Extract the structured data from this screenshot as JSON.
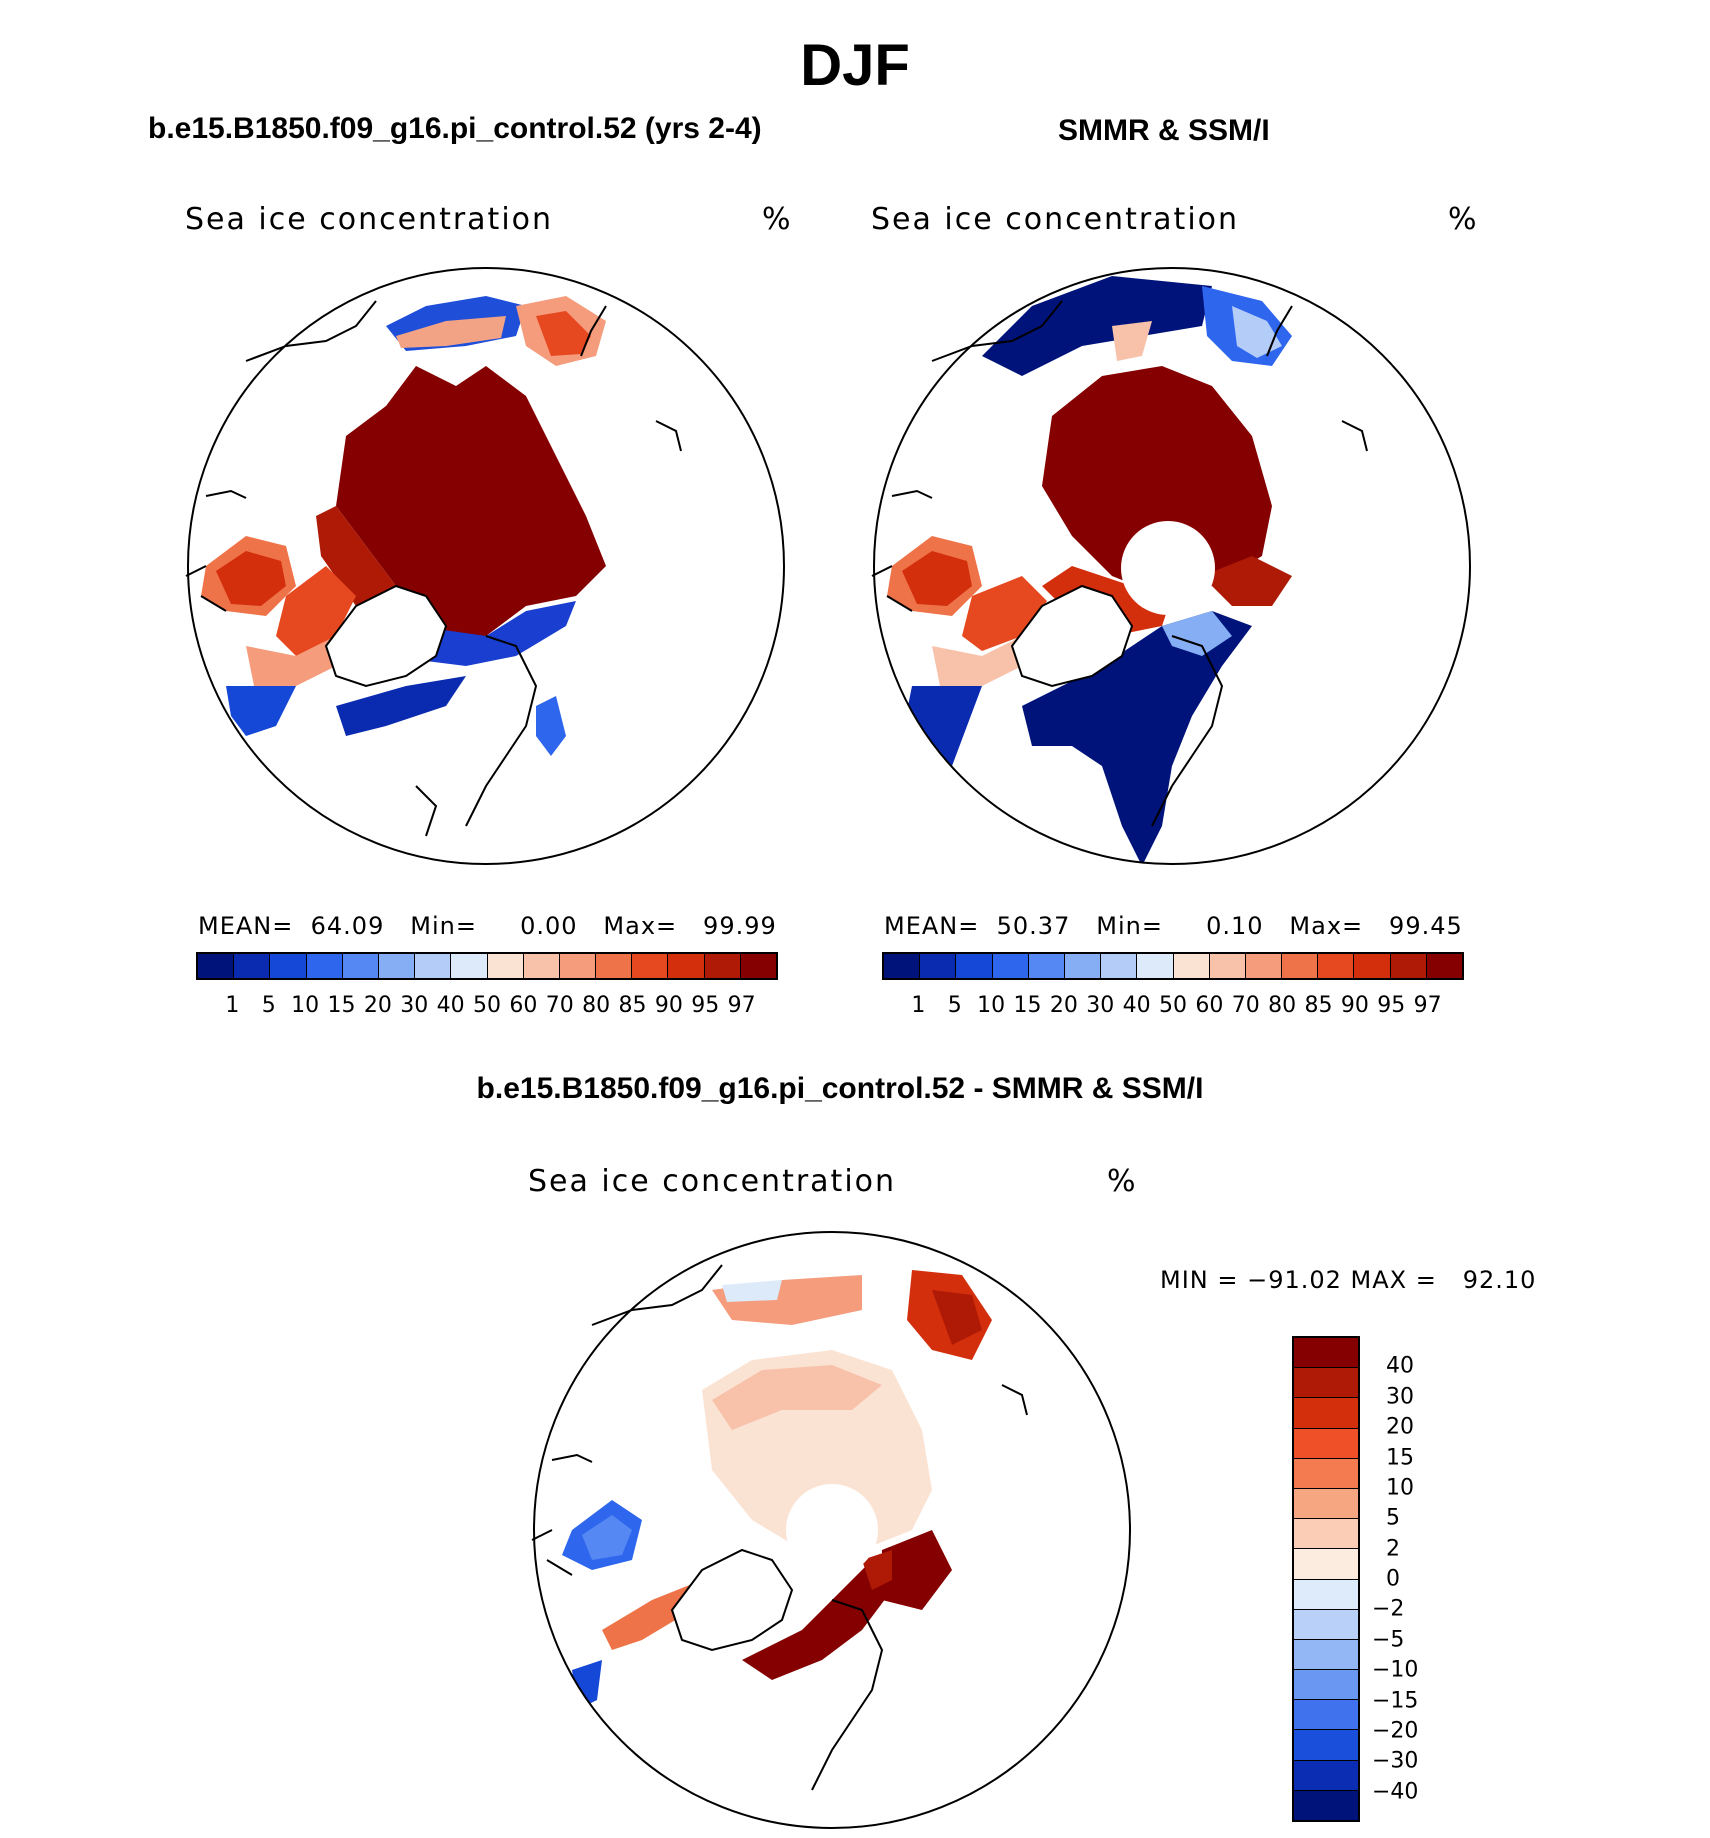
{
  "title": "DJF",
  "panels": {
    "model": {
      "subtitle": "b.e15.B1850.f09_g16.pi_control.52 (yrs 2-4)",
      "variable": "Sea ice concentration",
      "units": "%",
      "stats": {
        "mean_label": "MEAN=",
        "mean": "64.09",
        "min_label": "Min=",
        "min": "0.00",
        "max_label": "Max=",
        "max": "99.99"
      }
    },
    "obs": {
      "subtitle": "SMMR & SSM/I",
      "variable": "Sea ice concentration",
      "units": "%",
      "stats": {
        "mean_label": "MEAN=",
        "mean": "50.37",
        "min_label": "Min=",
        "min": "0.10",
        "max_label": "Max=",
        "max": "99.45"
      }
    },
    "diff": {
      "subtitle": "b.e15.B1850.f09_g16.pi_control.52 - SMMR & SSM/I",
      "variable": "Sea ice concentration",
      "units": "%",
      "minmax": "MIN = −91.02 MAX =   92.10"
    }
  },
  "colorbar_conc": {
    "colors": [
      "#00137a",
      "#0a2bb0",
      "#1648d8",
      "#2f66ee",
      "#5588f2",
      "#86aef5",
      "#b4cdf8",
      "#dceaf9",
      "#fbe3d4",
      "#f8c2aa",
      "#f49c7c",
      "#ef7349",
      "#e6491f",
      "#d42f0d",
      "#ae1a06",
      "#850000"
    ],
    "tick_labels": [
      "1",
      "5",
      "10",
      "15",
      "20",
      "30",
      "40",
      "50",
      "60",
      "70",
      "80",
      "85",
      "90",
      "95",
      "97"
    ]
  },
  "colorbar_diff": {
    "colors_top_to_bottom": [
      "#850000",
      "#ae1a06",
      "#d42f0d",
      "#ef5028",
      "#f47a50",
      "#f7a682",
      "#fbcdb7",
      "#fcebdf",
      "#deebfa",
      "#b9d1f8",
      "#93b6f5",
      "#6a97f1",
      "#3f72ec",
      "#1a4fdc",
      "#0a2db3",
      "#00137a"
    ],
    "tick_labels_top_to_bottom": [
      "40",
      "30",
      "20",
      "15",
      "10",
      "5",
      "2",
      "0",
      "−2",
      "−5",
      "−10",
      "−15",
      "−20",
      "−30",
      "−40"
    ]
  }
}
